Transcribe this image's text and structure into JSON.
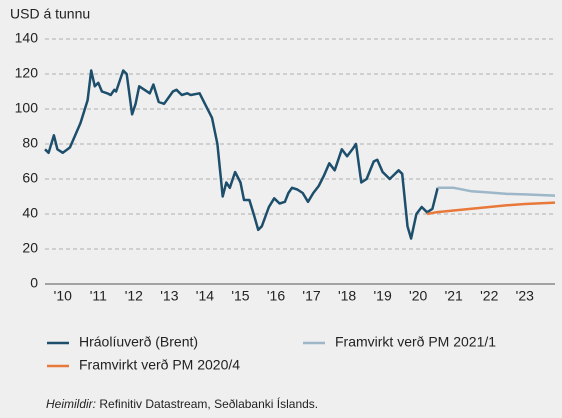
{
  "chart_data": {
    "type": "line",
    "ylabel": "USD á tunnu",
    "xlim": [
      2010,
      2024.35
    ],
    "ylim": [
      0,
      140
    ],
    "yticks": [
      0,
      20,
      40,
      60,
      80,
      100,
      120,
      140
    ],
    "xticks": [
      {
        "value": 2010.5,
        "label": "'10"
      },
      {
        "value": 2011.5,
        "label": "'11"
      },
      {
        "value": 2012.5,
        "label": "'12"
      },
      {
        "value": 2013.5,
        "label": "'13"
      },
      {
        "value": 2014.5,
        "label": "'14"
      },
      {
        "value": 2015.5,
        "label": "'15"
      },
      {
        "value": 2016.5,
        "label": "'16"
      },
      {
        "value": 2017.5,
        "label": "'17"
      },
      {
        "value": 2018.5,
        "label": "'18"
      },
      {
        "value": 2019.5,
        "label": "'19"
      },
      {
        "value": 2020.5,
        "label": "'20"
      },
      {
        "value": 2021.5,
        "label": "'21"
      },
      {
        "value": 2022.5,
        "label": "'22"
      },
      {
        "value": 2023.5,
        "label": "'23"
      }
    ],
    "grid": true,
    "series": [
      {
        "name": "Hráolíuverð (Brent)",
        "color": "#1d4e6b",
        "x": [
          2010.0,
          2010.1,
          2010.25,
          2010.35,
          2010.5,
          2010.7,
          2010.85,
          2011.0,
          2011.2,
          2011.3,
          2011.4,
          2011.5,
          2011.6,
          2011.75,
          2011.85,
          2011.95,
          2012.0,
          2012.2,
          2012.3,
          2012.45,
          2012.55,
          2012.65,
          2012.8,
          2012.95,
          2013.05,
          2013.2,
          2013.35,
          2013.6,
          2013.7,
          2013.85,
          2014.0,
          2014.1,
          2014.35,
          2014.5,
          2014.7,
          2014.85,
          2015.0,
          2015.1,
          2015.2,
          2015.35,
          2015.5,
          2015.6,
          2015.75,
          2015.9,
          2016.0,
          2016.1,
          2016.3,
          2016.45,
          2016.6,
          2016.75,
          2016.85,
          2016.95,
          2017.1,
          2017.25,
          2017.4,
          2017.55,
          2017.7,
          2017.85,
          2018.0,
          2018.15,
          2018.35,
          2018.5,
          2018.65,
          2018.75,
          2018.9,
          2019.05,
          2019.25,
          2019.35,
          2019.5,
          2019.6,
          2019.7,
          2019.8,
          2019.95,
          2020.05,
          2020.2,
          2020.3,
          2020.45,
          2020.6,
          2020.75,
          2020.9,
          2021.05
        ],
        "values": [
          77,
          75,
          85,
          77,
          75,
          78,
          85,
          92,
          105,
          122,
          113,
          115,
          110,
          109,
          108,
          111,
          110,
          122,
          120,
          97,
          103,
          113,
          111,
          109,
          114,
          104,
          103,
          110,
          111,
          108,
          109,
          108,
          109,
          103,
          95,
          80,
          50,
          58,
          55,
          64,
          58,
          48,
          48,
          38,
          31,
          33,
          44,
          49,
          46,
          47,
          52,
          55,
          54,
          52,
          47,
          52,
          56,
          62,
          69,
          65,
          77,
          73,
          77,
          80,
          58,
          60,
          70,
          71,
          64,
          62,
          60,
          62,
          65,
          63,
          33,
          26,
          40,
          44,
          41,
          43,
          55
        ]
      },
      {
        "name": "Framvirkt verð PM 2020/4",
        "color": "#e8793a",
        "x": [
          2020.75,
          2021.0,
          2021.5,
          2022.0,
          2022.5,
          2023.0,
          2023.5,
          2024.35
        ],
        "values": [
          40,
          41,
          42,
          43,
          44,
          45,
          45.7,
          46.5
        ]
      },
      {
        "name": "Framvirkt verð PM 2021/1",
        "color": "#9db7c9",
        "x": [
          2021.05,
          2021.5,
          2022.0,
          2022.5,
          2023.0,
          2023.5,
          2024.35
        ],
        "values": [
          55,
          55,
          53,
          52.3,
          51.5,
          51.2,
          50.5
        ]
      }
    ],
    "source_label": "Heimildir:",
    "source_text": "Refinitiv Datastream, Seðlabanki Íslands."
  }
}
